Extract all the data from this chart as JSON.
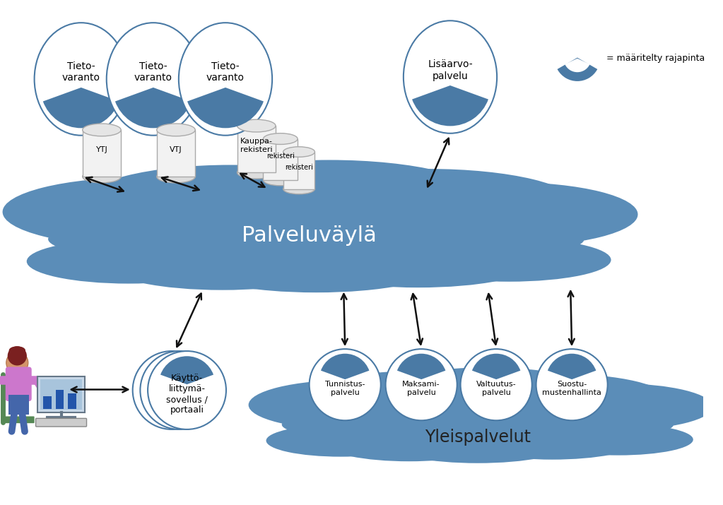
{
  "bg_color": "#ffffff",
  "cloud_main_color": "#5b8db8",
  "cloud_light_color": "#7aaac8",
  "ellipse_fill": "#ffffff",
  "ellipse_edge": "#4a7aa5",
  "wedge_color": "#4a7aa5",
  "arrow_color": "#111111",
  "palveluvayla_text": "Palveluväylä",
  "palveluvayla_color": "#ffffff",
  "yleispalvelut_text": "Yleispalvelut",
  "yleispalvelut_color": "#222222",
  "legend_text": "= määritelty rajapinta",
  "tietovaranto_labels": [
    "Tieto-\nvaranto",
    "Tieto-\nvaranto",
    "Tieto-\nvaranto"
  ],
  "db_labels": [
    "YTJ",
    "VTJ",
    "Kauppa-\nrekisteri"
  ],
  "extra_db_labels": [
    "rekisteri",
    "rekisteri"
  ],
  "lisaarvo_label": "Lisäarvo-\npalvelu",
  "kayttoliittyma_label": "Käyttö-\nliittymä-\nsovellus /\nportaali",
  "kayttoliittyma_back_labels": [
    "sovellus /\nportaali",
    "portaali"
  ],
  "yleispalvelu_labels": [
    "Tunnistus-\npalvelu",
    "Maksami-\npalvelu",
    "Valtuutus-\npalvelu",
    "Suostu-\nmustenhallinta"
  ]
}
